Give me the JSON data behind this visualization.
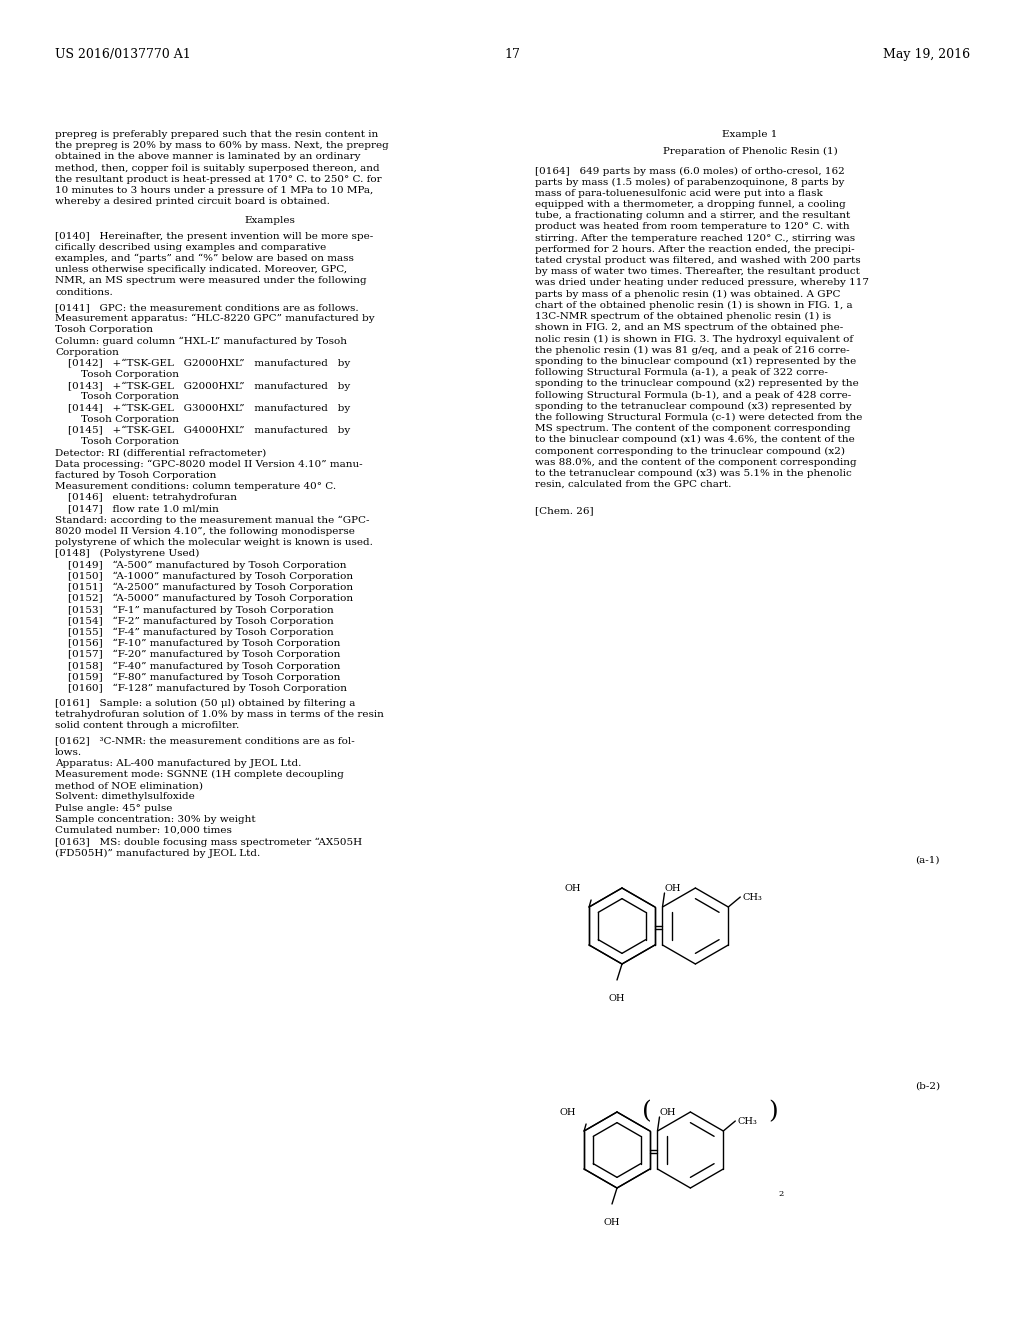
{
  "bg_color": "#ffffff",
  "header_left": "US 2016/0137770 A1",
  "header_right": "May 19, 2016",
  "page_number": "17",
  "body_fs": 7.5,
  "small_fs": 7.0,
  "header_fs": 9.0,
  "chem_fs": 7.5
}
